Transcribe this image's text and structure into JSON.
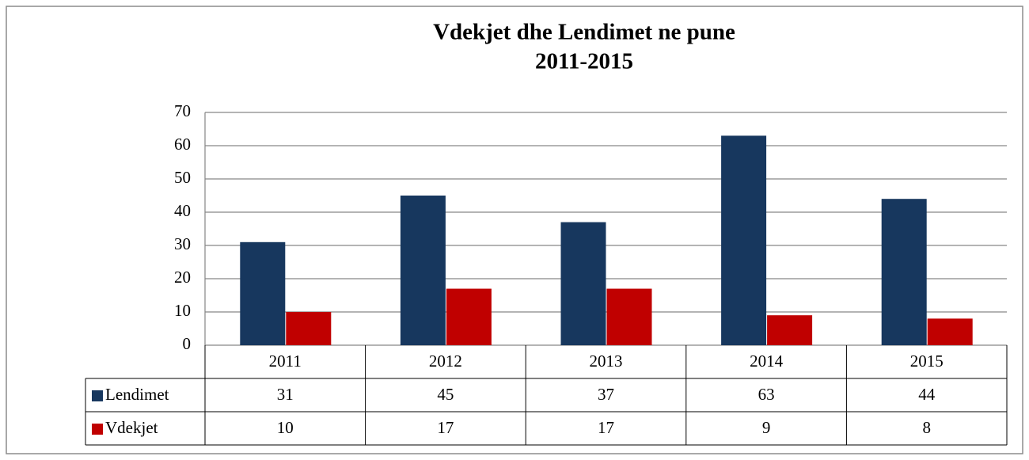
{
  "chart_data": {
    "type": "bar",
    "title": "Vdekjet dhe Lendimet ne pune",
    "subtitle": "2011-2015",
    "categories": [
      "2011",
      "2012",
      "2013",
      "2014",
      "2015"
    ],
    "series": [
      {
        "name": "Lendimet",
        "color": "#17375e",
        "values": [
          31,
          45,
          37,
          63,
          44
        ]
      },
      {
        "name": "Vdekjet",
        "color": "#c00000",
        "values": [
          10,
          17,
          17,
          9,
          8
        ]
      }
    ],
    "ylim": [
      0,
      70
    ],
    "yticks": [
      0,
      10,
      20,
      30,
      40,
      50,
      60,
      70
    ],
    "grid": true
  }
}
